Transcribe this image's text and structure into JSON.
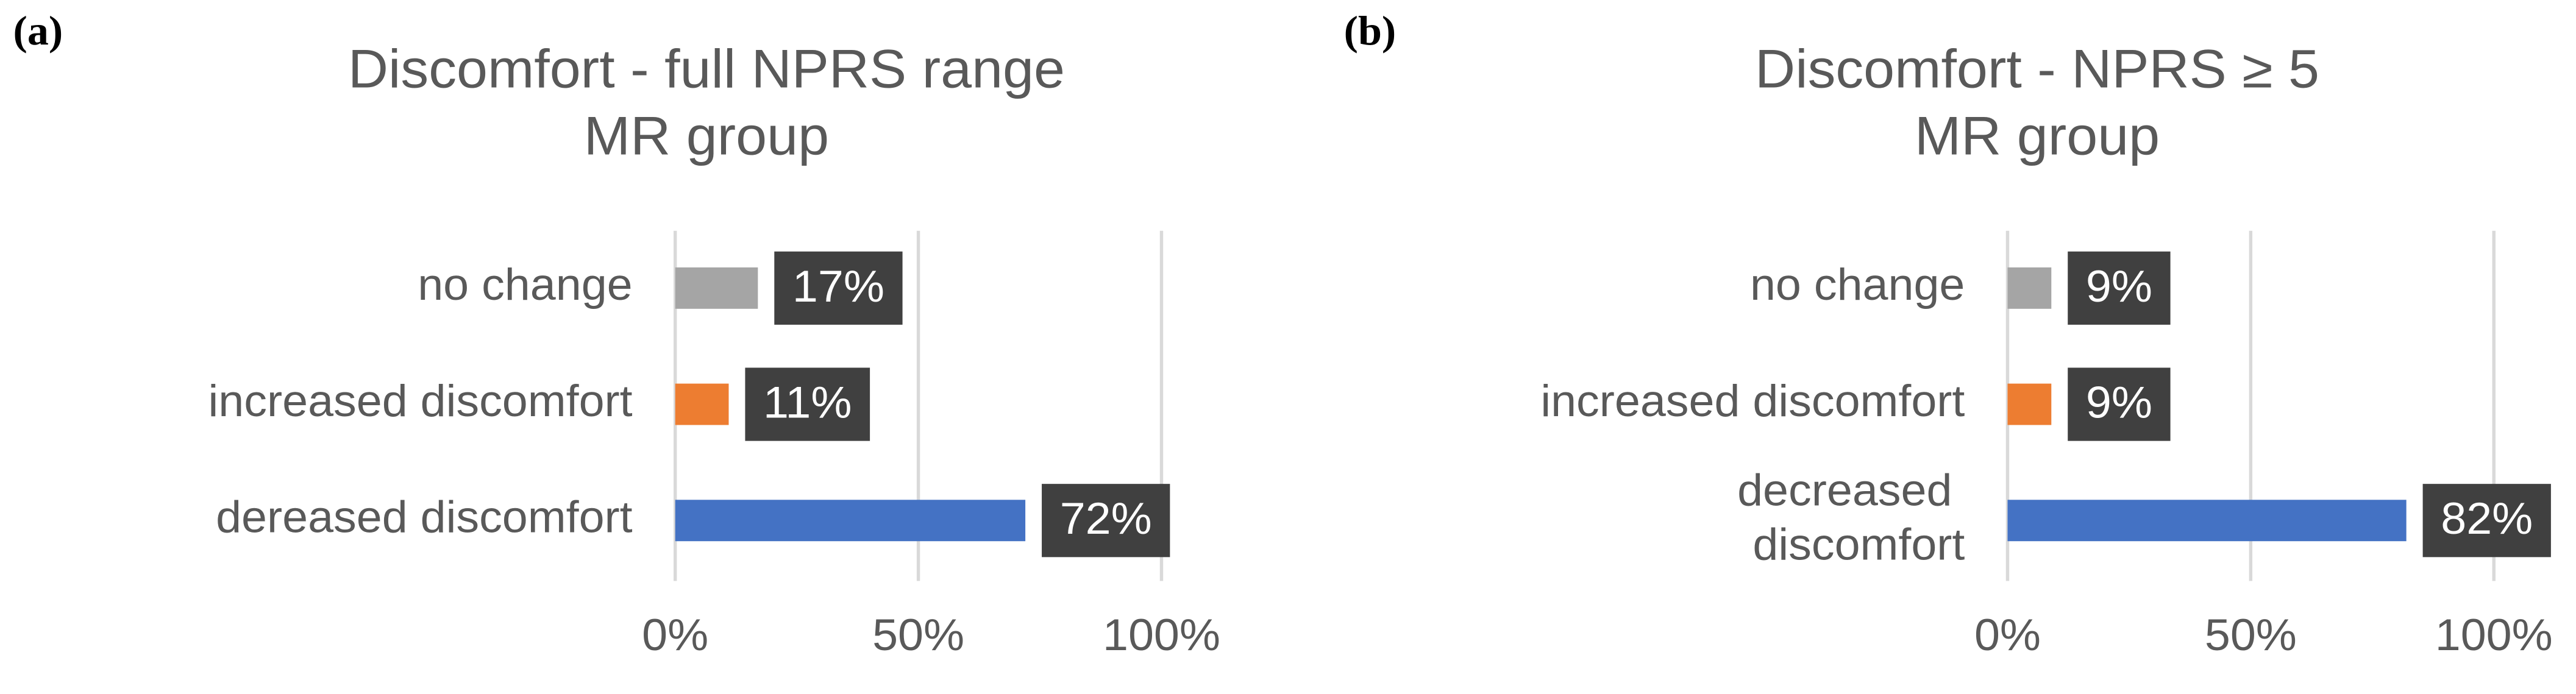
{
  "chart_data": [
    {
      "type": "barh",
      "label": "(a)",
      "title": [
        "Discomfort - full NPRS range",
        "MR group"
      ],
      "categories": [
        "no change",
        "increased discomfort",
        "dereased discomfort"
      ],
      "values": [
        17,
        11,
        72
      ],
      "value_labels": [
        "17%",
        "11%",
        "72%"
      ],
      "colors": [
        "#a5a5a5",
        "#ed7d31",
        "#4472c4"
      ],
      "xlim": [
        0,
        100
      ],
      "xticks": [
        {
          "value": 0,
          "label": "0%"
        },
        {
          "value": 50,
          "label": "50%"
        },
        {
          "value": 100,
          "label": "100%"
        }
      ],
      "grid": true
    },
    {
      "type": "barh",
      "label": "(b)",
      "title": [
        "Discomfort - NPRS ≥ 5",
        "MR group"
      ],
      "categories": [
        "no change",
        "increased discomfort",
        "decreased discomfort"
      ],
      "values": [
        9,
        9,
        82
      ],
      "value_labels": [
        "9%",
        "9%",
        "82%"
      ],
      "colors": [
        "#a5a5a5",
        "#ed7d31",
        "#4472c4"
      ],
      "xlim": [
        0,
        100
      ],
      "xticks": [
        {
          "value": 0,
          "label": "0%"
        },
        {
          "value": 50,
          "label": "50%"
        },
        {
          "value": 100,
          "label": "100%"
        }
      ],
      "grid": true
    }
  ]
}
